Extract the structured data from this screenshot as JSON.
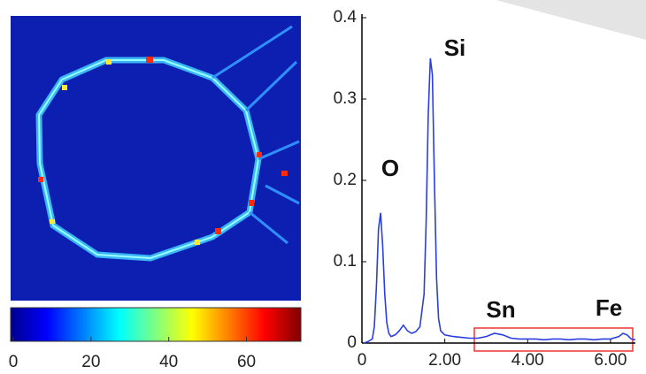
{
  "chart_data": [
    {
      "type": "heatmap",
      "clim": [
        0,
        74
      ],
      "cticks": [
        0,
        20,
        40,
        60
      ]
    },
    {
      "type": "line",
      "color": "#2a3fe0",
      "x": [
        0.05,
        0.15,
        0.25,
        0.3,
        0.35,
        0.4,
        0.45,
        0.5,
        0.55,
        0.6,
        0.65,
        0.7,
        0.8,
        0.9,
        1.0,
        1.1,
        1.2,
        1.3,
        1.4,
        1.5,
        1.55,
        1.6,
        1.65,
        1.7,
        1.75,
        1.8,
        1.85,
        1.9,
        2.0,
        2.2,
        2.4,
        2.6,
        2.8,
        3.0,
        3.2,
        3.4,
        3.6,
        3.8,
        4.0,
        4.2,
        4.4,
        4.6,
        4.8,
        5.0,
        5.2,
        5.4,
        5.6,
        5.8,
        6.0,
        6.2,
        6.3,
        6.4,
        6.5,
        6.6
      ],
      "values": [
        0.0,
        0.002,
        0.005,
        0.02,
        0.07,
        0.14,
        0.16,
        0.12,
        0.06,
        0.025,
        0.012,
        0.008,
        0.01,
        0.015,
        0.022,
        0.015,
        0.012,
        0.014,
        0.02,
        0.06,
        0.15,
        0.28,
        0.35,
        0.33,
        0.2,
        0.08,
        0.03,
        0.015,
        0.01,
        0.008,
        0.007,
        0.006,
        0.006,
        0.008,
        0.012,
        0.01,
        0.006,
        0.005,
        0.005,
        0.005,
        0.004,
        0.005,
        0.005,
        0.004,
        0.005,
        0.005,
        0.004,
        0.005,
        0.005,
        0.008,
        0.012,
        0.01,
        0.005,
        0.004
      ],
      "xlim": [
        0,
        6.6
      ],
      "ylim": [
        0,
        0.4
      ],
      "xticks": [
        0,
        {
          "value": 2,
          "label": "2.00"
        },
        {
          "value": 4,
          "label": "4.00"
        },
        {
          "value": 6,
          "label": "6.00"
        }
      ],
      "yticks": [
        0,
        0.1,
        0.2,
        0.3,
        0.4
      ],
      "annotations": [
        "O",
        "Si",
        "Sn",
        "Fe"
      ]
    }
  ]
}
